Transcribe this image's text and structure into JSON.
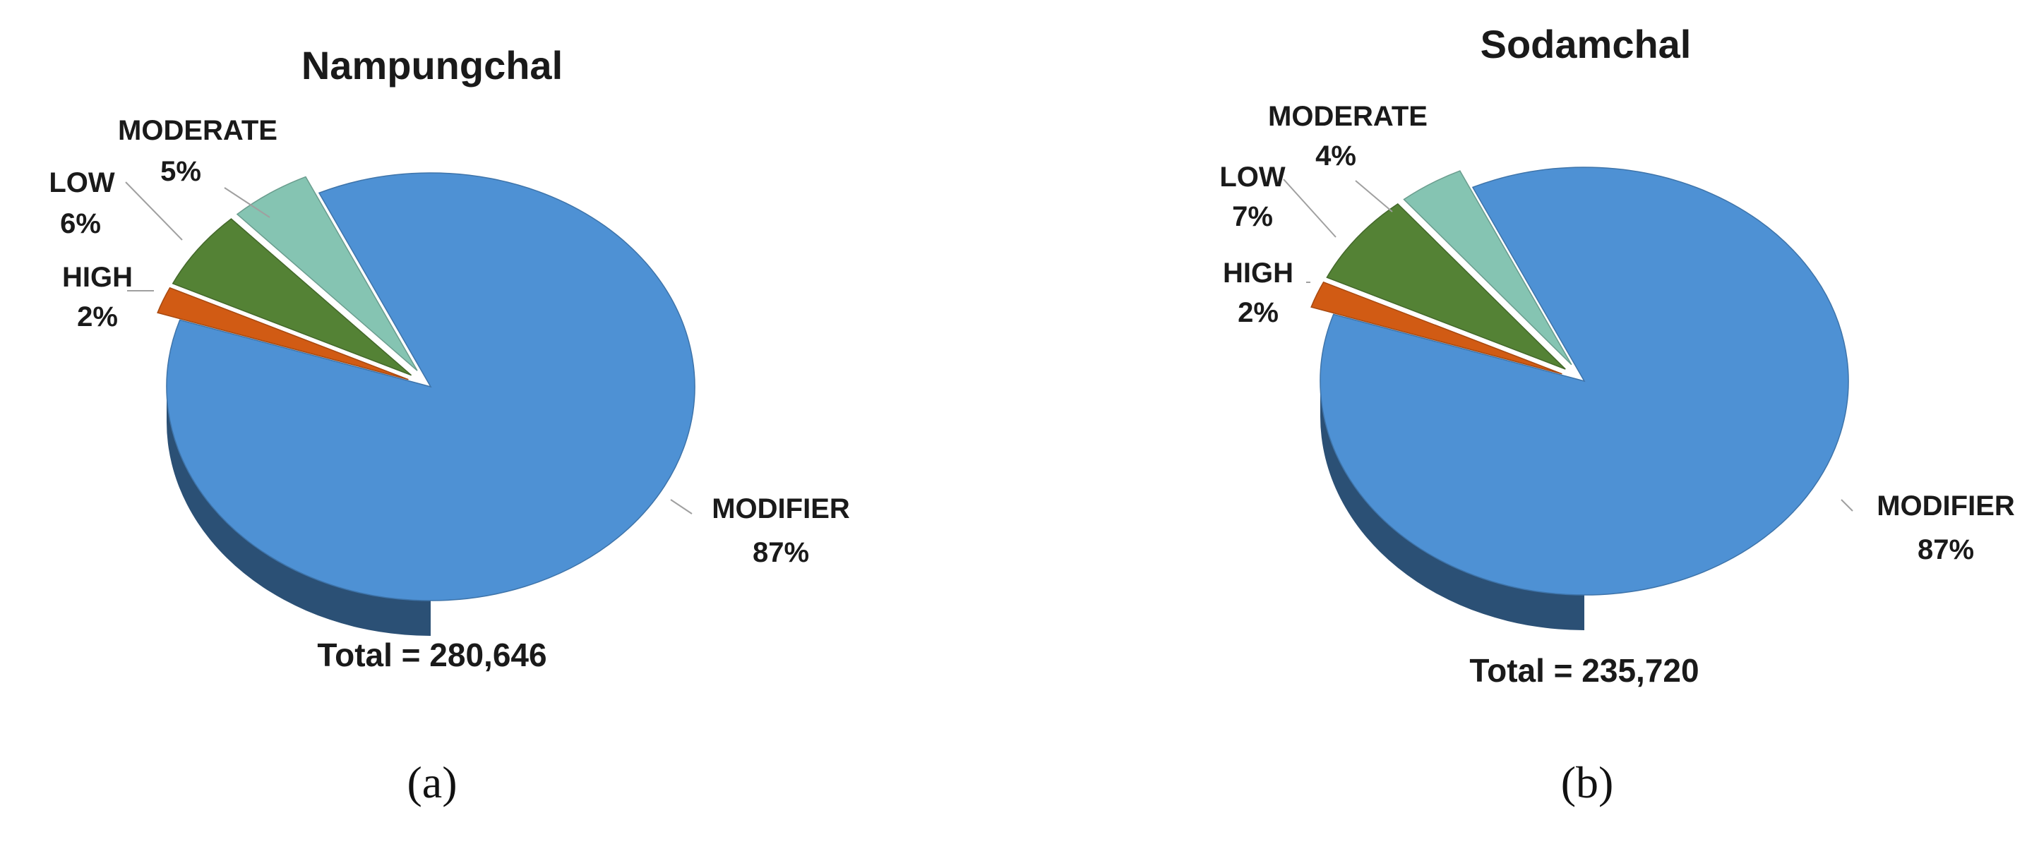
{
  "chart_data": [
    {
      "type": "pie",
      "style": "3d-exploded",
      "title": "Nampungchal",
      "panel_label": "(a)",
      "total_label": "Total = 280,646",
      "slices": [
        {
          "label": "MODIFIER",
          "percent_label": "87%",
          "value": 87,
          "color": "#4e91d4"
        },
        {
          "label": "HIGH",
          "percent_label": "2%",
          "value": 2,
          "color": "#d15b14"
        },
        {
          "label": "LOW",
          "percent_label": "6%",
          "value": 6,
          "color": "#548235"
        },
        {
          "label": "MODERATE",
          "percent_label": "5%",
          "value": 5,
          "color": "#85c4b2"
        }
      ]
    },
    {
      "type": "pie",
      "style": "3d-exploded",
      "title": "Sodamchal",
      "panel_label": "(b)",
      "total_label": "Total = 235,720",
      "slices": [
        {
          "label": "MODIFIER",
          "percent_label": "87%",
          "value": 87,
          "color": "#4e91d4"
        },
        {
          "label": "HIGH",
          "percent_label": "2%",
          "value": 2,
          "color": "#d15b14"
        },
        {
          "label": "LOW",
          "percent_label": "7%",
          "value": 7,
          "color": "#548235"
        },
        {
          "label": "MODERATE",
          "percent_label": "4%",
          "value": 4,
          "color": "#85c4b2"
        }
      ]
    }
  ]
}
